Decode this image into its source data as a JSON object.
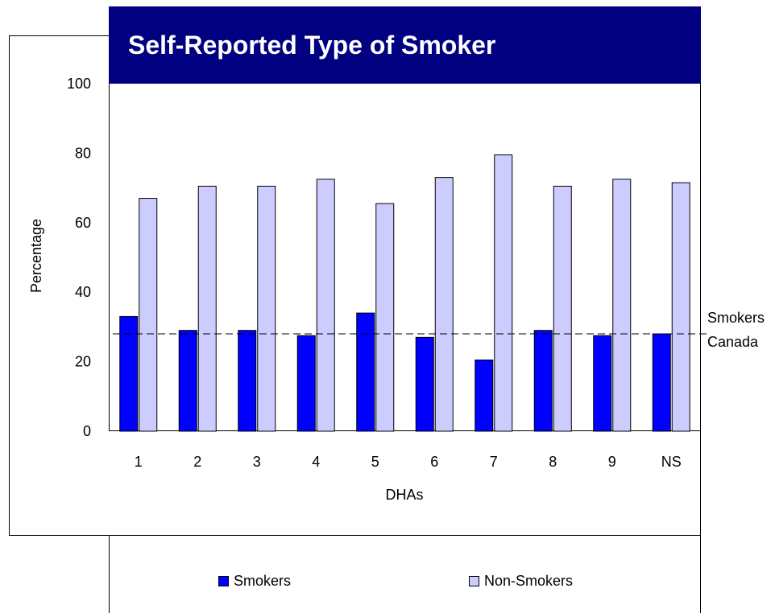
{
  "chart_data": {
    "type": "bar",
    "title": "Self-Reported Type of Smoker",
    "xlabel": "DHAs",
    "ylabel": "Percentage",
    "categories": [
      "1",
      "2",
      "3",
      "4",
      "5",
      "6",
      "7",
      "8",
      "9",
      "NS"
    ],
    "series": [
      {
        "name": "Smokers",
        "color": "#0000ff",
        "values": [
          33,
          29,
          29,
          27.5,
          34,
          27,
          20.5,
          29,
          27.5,
          28
        ]
      },
      {
        "name": "Non-Smokers",
        "color": "#ccccff",
        "values": [
          67,
          70.5,
          70.5,
          72.5,
          65.5,
          73,
          79.5,
          70.5,
          72.5,
          71.5
        ]
      }
    ],
    "ylim": [
      0,
      100
    ],
    "yticks": [
      0,
      20,
      40,
      60,
      80,
      100
    ],
    "reference_line": {
      "label": "SmokersCanada",
      "value": 28,
      "style": "dashed"
    },
    "grid": false,
    "legend_position": "bottom"
  }
}
